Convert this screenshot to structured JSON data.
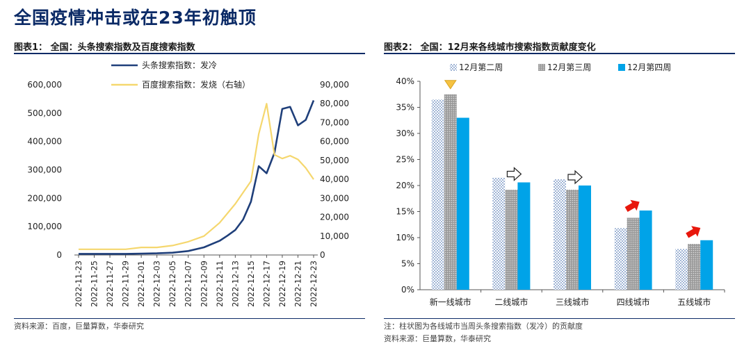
{
  "header": {
    "title": "全国疫情冲击或在23年初触顶"
  },
  "charts": {
    "chart1_title": "图表1： 全国：头条搜索指数及百度搜索指数",
    "chart2_title": "图表2： 全国：12月来各线城市搜索指数贡献度变化"
  },
  "notes": {
    "chart1_source": "资料来源：百度，巨量算数，华泰研究",
    "chart2_note": "注：柱状图为各线城市当周头条搜索指数（发冷）的贡献度",
    "chart2_source": "资料来源：巨量算数，华泰研究"
  },
  "chart_data": [
    {
      "type": "line",
      "x": [
        "2022-11-23",
        "2022-11-25",
        "2022-11-27",
        "2022-11-29",
        "2022-12-01",
        "2022-12-03",
        "2022-12-05",
        "2022-12-07",
        "2022-12-09",
        "2022-12-11",
        "2022-12-13",
        "2022-12-15",
        "2022-12-17",
        "2022-12-19",
        "2022-12-21",
        "2022-12-23"
      ],
      "y_ticks_left": [
        "0",
        "100,000",
        "200,000",
        "300,000",
        "400,000",
        "500,000",
        "600,000"
      ],
      "y_ticks_right": [
        "0",
        "10,000",
        "20,000",
        "30,000",
        "40,000",
        "50,000",
        "60,000",
        "70,000",
        "80,000",
        "90,000"
      ],
      "ylim_left": [
        0,
        600000
      ],
      "ylim_right": [
        0,
        90000
      ],
      "legend_position": "top",
      "series": [
        {
          "name": "头条搜索指数：发冷",
          "axis": "left",
          "color": "#1f3f7a",
          "points": [
            [
              "2022-11-23",
              4000
            ],
            [
              "2022-11-25",
              4000
            ],
            [
              "2022-11-27",
              4000
            ],
            [
              "2022-11-29",
              4000
            ],
            [
              "2022-12-01",
              5000
            ],
            [
              "2022-12-03",
              6000
            ],
            [
              "2022-12-05",
              8000
            ],
            [
              "2022-12-07",
              14000
            ],
            [
              "2022-12-09",
              27000
            ],
            [
              "2022-12-11",
              50000
            ],
            [
              "2022-12-12",
              68000
            ],
            [
              "2022-12-13",
              88000
            ],
            [
              "2022-12-14",
              125000
            ],
            [
              "2022-12-15",
              188000
            ],
            [
              "2022-12-16",
              313000
            ],
            [
              "2022-12-17",
              288000
            ],
            [
              "2022-12-18",
              360000
            ],
            [
              "2022-12-19",
              515000
            ],
            [
              "2022-12-20",
              522000
            ],
            [
              "2022-12-21",
              457000
            ],
            [
              "2022-12-22",
              476000
            ],
            [
              "2022-12-23",
              545000
            ]
          ]
        },
        {
          "name": "百度搜索指数：发烧（右轴）",
          "axis": "right",
          "color": "#f5d76e",
          "points": [
            [
              "2022-11-23",
              3000
            ],
            [
              "2022-11-25",
              3000
            ],
            [
              "2022-11-27",
              3000
            ],
            [
              "2022-11-29",
              3000
            ],
            [
              "2022-12-01",
              4000
            ],
            [
              "2022-12-03",
              4000
            ],
            [
              "2022-12-05",
              5000
            ],
            [
              "2022-12-07",
              7000
            ],
            [
              "2022-12-09",
              10000
            ],
            [
              "2022-12-11",
              17000
            ],
            [
              "2022-12-13",
              27000
            ],
            [
              "2022-12-15",
              39000
            ],
            [
              "2022-12-16",
              64000
            ],
            [
              "2022-12-17",
              80000
            ],
            [
              "2022-12-18",
              53000
            ],
            [
              "2022-12-19",
              51000
            ],
            [
              "2022-12-20",
              52500
            ],
            [
              "2022-12-21",
              50500
            ],
            [
              "2022-12-22",
              46000
            ],
            [
              "2022-12-23",
              40000
            ]
          ]
        }
      ]
    },
    {
      "type": "bar",
      "categories": [
        "新一线城市",
        "二线城市",
        "三线城市",
        "四线城市",
        "五线城市"
      ],
      "y_ticks": [
        "0%",
        "5%",
        "10%",
        "15%",
        "20%",
        "25%",
        "30%",
        "35%",
        "40%"
      ],
      "ylim": [
        0,
        40
      ],
      "legend_position": "top",
      "series": [
        {
          "name": "12月第二周",
          "style": "dotted",
          "color": "#8ea7cc",
          "values": [
            36.5,
            21.5,
            21.2,
            11.8,
            7.8
          ]
        },
        {
          "name": "12月第三周",
          "style": "gray-dotted",
          "color": "#a6a6a6",
          "values": [
            37.5,
            19.2,
            19.2,
            13.8,
            8.8
          ]
        },
        {
          "name": "12月第四周",
          "style": "solid",
          "color": "#00a3e8",
          "values": [
            33.0,
            20.6,
            20.0,
            15.2,
            9.5
          ]
        }
      ],
      "annotations": [
        {
          "category": "新一线城市",
          "arrow": "down",
          "color": "#f5c242"
        },
        {
          "category": "二线城市",
          "arrow": "right",
          "color": "#ffffff"
        },
        {
          "category": "三线城市",
          "arrow": "right",
          "color": "#ffffff"
        },
        {
          "category": "四线城市",
          "arrow": "up-right",
          "color": "#e8170c"
        },
        {
          "category": "五线城市",
          "arrow": "up-right",
          "color": "#e8170c"
        }
      ]
    }
  ]
}
